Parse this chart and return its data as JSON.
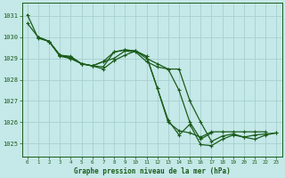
{
  "title": "Graphe pression niveau de la mer (hPa)",
  "background_color": "#c5e8e8",
  "grid_color": "#a8d0d0",
  "line_color": "#1a5c1a",
  "xlim": [
    -0.5,
    23.5
  ],
  "ylim": [
    1024.4,
    1031.6
  ],
  "yticks": [
    1025,
    1026,
    1027,
    1028,
    1029,
    1030,
    1031
  ],
  "xticks": [
    0,
    1,
    2,
    3,
    4,
    5,
    6,
    7,
    8,
    9,
    10,
    11,
    12,
    13,
    14,
    15,
    16,
    17,
    18,
    19,
    20,
    21,
    22,
    23
  ],
  "series": [
    {
      "x": [
        0,
        1,
        2,
        3,
        4,
        5,
        6,
        7,
        8,
        9,
        10,
        11,
        12,
        13,
        14,
        15,
        16,
        17,
        18,
        19,
        20,
        21,
        22
      ],
      "y": [
        1031.05,
        1029.95,
        1029.8,
        1029.15,
        1029.1,
        1028.75,
        1028.65,
        1028.5,
        1028.9,
        1029.15,
        1029.35,
        1029.1,
        1027.6,
        1026.0,
        1025.6,
        1025.5,
        1025.3,
        1025.55,
        1025.55,
        1025.55,
        1025.55,
        1025.55,
        1025.55
      ]
    },
    {
      "x": [
        1,
        2,
        3,
        4,
        5,
        6,
        7,
        8,
        9,
        10,
        11,
        12,
        13,
        14,
        15,
        16,
        17,
        18,
        19,
        20,
        21,
        22,
        23
      ],
      "y": [
        1030.0,
        1029.8,
        1029.15,
        1029.0,
        1028.75,
        1028.65,
        1028.85,
        1029.3,
        1029.4,
        1029.35,
        1029.0,
        1028.75,
        1028.5,
        1028.5,
        1027.0,
        1026.0,
        1025.1,
        1025.35,
        1025.45,
        1025.3,
        1025.2,
        1025.4,
        1025.5
      ]
    },
    {
      "x": [
        0,
        1,
        2,
        3,
        4,
        5,
        6,
        7,
        8,
        9,
        10,
        11,
        12,
        13,
        14,
        15,
        16,
        17
      ],
      "y": [
        1030.65,
        1030.0,
        1029.8,
        1029.15,
        1029.05,
        1028.75,
        1028.65,
        1028.85,
        1029.0,
        1029.35,
        1029.3,
        1028.85,
        1028.6,
        1028.5,
        1027.5,
        1026.0,
        1025.2,
        1025.5
      ]
    },
    {
      "x": [
        1,
        2,
        3,
        4,
        5,
        6,
        7,
        8,
        9,
        10,
        11,
        12,
        13,
        14,
        15,
        16,
        17,
        18,
        19,
        20,
        21,
        22,
        23
      ],
      "y": [
        1030.0,
        1029.8,
        1029.1,
        1029.0,
        1028.75,
        1028.65,
        1028.6,
        1029.3,
        1029.4,
        1029.35,
        1029.1,
        1027.6,
        1026.1,
        1025.4,
        1025.9,
        1024.95,
        1024.9,
        1025.2,
        1025.4,
        1025.3,
        1025.4,
        1025.45,
        1025.5
      ]
    }
  ],
  "marker": "+",
  "marker_size": 3.5,
  "line_width": 0.9
}
